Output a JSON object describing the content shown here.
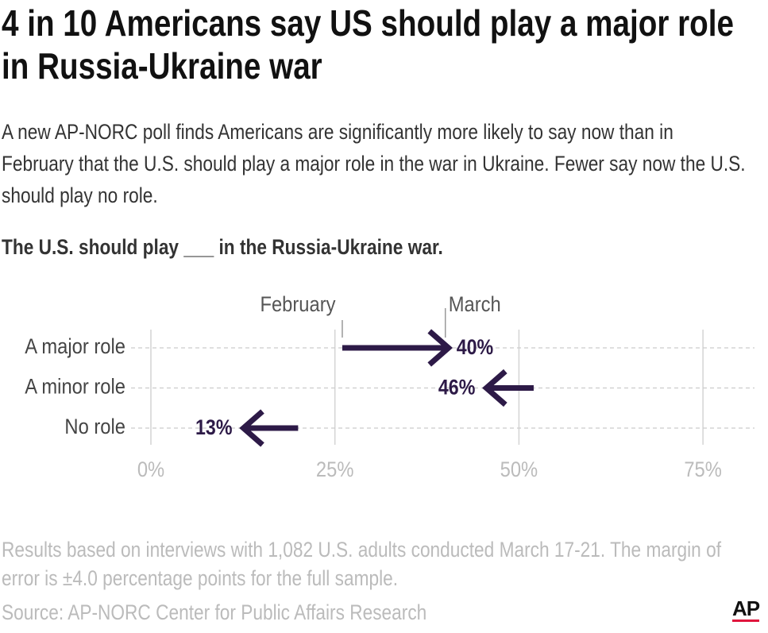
{
  "chart_data": {
    "type": "arrow",
    "title": "4 in 10 Americans say US should play a major role in Russia-Ukraine war",
    "subtitle": "A new AP-NORC poll finds Americans are significantly more likely to say now than in February that the U.S. should play a major role in the war in Ukraine. Fewer say now the U.S. should play no role.",
    "question": "The U.S. should play ___ in the Russia-Ukraine war.",
    "categories": [
      "A major role",
      "A minor role",
      "No role"
    ],
    "series": [
      {
        "name": "February",
        "color": "#2d1a47",
        "values": [
          26,
          52,
          20
        ]
      },
      {
        "name": "March",
        "color": "#2d1a47",
        "values": [
          40,
          46,
          13
        ],
        "value_labels": [
          "40%",
          "46%",
          "13%"
        ]
      }
    ],
    "xlim": [
      0,
      82
    ],
    "xticks": [
      {
        "value": 0,
        "label": "0%"
      },
      {
        "value": 25,
        "label": "25%"
      },
      {
        "value": 50,
        "label": "50%"
      },
      {
        "value": 75,
        "label": "75%"
      }
    ],
    "grid": true,
    "note": "Results based on interviews with 1,082 U.S. adults conducted March 17-21. The margin of error is ±4.0 percentage points for the full sample.",
    "source": "Source: AP-NORC Center for Public Affairs Research",
    "logo": "AP"
  }
}
